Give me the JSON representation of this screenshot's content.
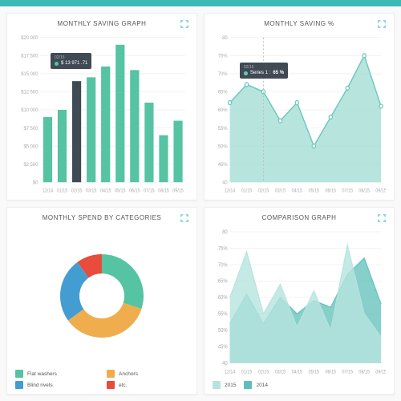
{
  "colors": {
    "accent": "#3db9b4",
    "bar": "#56c3a3",
    "bar_hover": "#3f4a55",
    "grid": "#eeeeee",
    "axis_text": "#aaaaaa",
    "panel_bg": "#ffffff",
    "title_text": "#555555",
    "area_dark": "#5dbfb9",
    "area_light": "#b6e3de",
    "tooltip_bg": "#3f4a55",
    "donut": {
      "teal": "#56c3a3",
      "orange": "#f0ad4e",
      "blue": "#449dd1",
      "red": "#e74c3c"
    }
  },
  "fonts": {
    "title_size": 8,
    "axis_size": 6
  },
  "saving_graph": {
    "title": "MONTHLY SAVING GRAPH",
    "type": "bar",
    "ylim": [
      0,
      20000
    ],
    "ytick_step": 2500,
    "ylabels": [
      "$0",
      "$2 500",
      "$5 000",
      "$7 500",
      "$10 000",
      "$12 500",
      "$15 000",
      "$17 500",
      "$20 000"
    ],
    "xlabels": [
      "12/14",
      "01/15",
      "02/15",
      "03/15",
      "04/15",
      "05/15",
      "06/15",
      "07/15",
      "08/15",
      "09/15"
    ],
    "values": [
      9000,
      10000,
      13971,
      14500,
      16000,
      19000,
      15500,
      11000,
      6500,
      8500
    ],
    "bar_color": "#56c3a3",
    "highlight_index": 2,
    "tooltip": {
      "date": "02/15",
      "value": "$ 13 971 .71",
      "dot": "#56c3a3"
    }
  },
  "saving_pct": {
    "title": "MONTHLY SAVING %",
    "type": "area",
    "ylim": [
      40,
      80
    ],
    "ytick_step": 5,
    "ylabels": [
      "40",
      "45%",
      "50%",
      "55%",
      "60%",
      "65%",
      "70%",
      "75%",
      "80"
    ],
    "xlabels": [
      "12/14",
      "01/15",
      "02/15",
      "03/15",
      "04/15",
      "05/15",
      "06/15",
      "07/15",
      "08/15",
      "09/15"
    ],
    "series": [
      62,
      67,
      65,
      57,
      62,
      50,
      58,
      66,
      75,
      61
    ],
    "fill_color": "#9fdcd3",
    "line_color": "#6cc7bd",
    "highlight_index": 2,
    "tooltip": {
      "date": "02/15",
      "label": "Series 1 :",
      "value": "65 %",
      "dot": "#6cc7bd"
    }
  },
  "spend_by_cat": {
    "title": "MONTHLY SPEND BY CATEGORIES",
    "type": "donut",
    "slices": [
      {
        "label": "Flat washers",
        "value": 30,
        "color": "#56c3a3"
      },
      {
        "label": "Anchors",
        "value": 35,
        "color": "#f0ad4e"
      },
      {
        "label": "Blind rivets",
        "value": 25,
        "color": "#449dd1"
      },
      {
        "label": "etc.",
        "value": 10,
        "color": "#e74c3c"
      }
    ]
  },
  "comparison": {
    "title": "COMPARISON GRAPH",
    "type": "area",
    "ylim": [
      40,
      80
    ],
    "ytick_step": 5,
    "ylabels": [
      "40",
      "45%",
      "50%",
      "55%",
      "60%",
      "65%",
      "70%",
      "75%",
      "80"
    ],
    "xlabels": [
      "12/14",
      "01/15",
      "02/15",
      "03/15",
      "04/15",
      "05/15",
      "06/15",
      "07/15",
      "08/15",
      "09/15"
    ],
    "series_2015": {
      "label": "2015",
      "color": "#b6e3de",
      "values": [
        60,
        74,
        55,
        64,
        51,
        62,
        50,
        76,
        55,
        48
      ]
    },
    "series_2014": {
      "label": "2014",
      "color": "#5dbfb9",
      "values": [
        52,
        61,
        52,
        60,
        55,
        59,
        57,
        67,
        72,
        58
      ]
    }
  }
}
